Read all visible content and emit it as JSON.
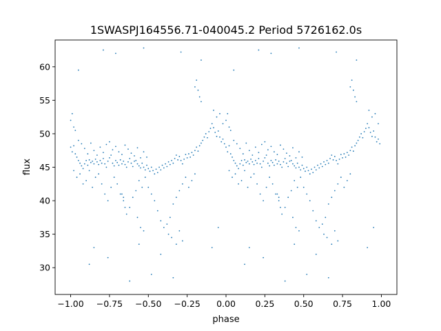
{
  "chart_data": {
    "type": "scatter",
    "title": "1SWASPJ164556.71-040045.2 Period 5726162.0s",
    "xlabel": "phase",
    "ylabel": "flux",
    "xlim": [
      -1.1,
      1.1
    ],
    "ylim": [
      26,
      64
    ],
    "xticks": [
      -1.0,
      -0.75,
      -0.5,
      -0.25,
      0.0,
      0.25,
      0.5,
      0.75,
      1.0
    ],
    "xtick_labels": [
      "−1.00",
      "−0.75",
      "−0.50",
      "−0.25",
      "0.00",
      "0.25",
      "0.50",
      "0.75",
      "1.00"
    ],
    "yticks": [
      30,
      35,
      40,
      45,
      50,
      55,
      60
    ],
    "ytick_labels": [
      "30",
      "35",
      "40",
      "45",
      "50",
      "55",
      "60"
    ],
    "grid": false,
    "marker_color": "#1f77b4",
    "folded": true,
    "series": [
      {
        "points": [
          [
            0.0,
            48.0
          ],
          [
            0.01,
            47.3
          ],
          [
            0.02,
            48.2
          ],
          [
            0.03,
            47.0
          ],
          [
            0.04,
            46.5
          ],
          [
            0.05,
            46.0
          ],
          [
            0.06,
            45.6
          ],
          [
            0.07,
            45.2
          ],
          [
            0.08,
            44.8
          ],
          [
            0.09,
            45.5
          ],
          [
            0.1,
            46.0
          ],
          [
            0.11,
            45.3
          ],
          [
            0.12,
            46.1
          ],
          [
            0.13,
            45.7
          ],
          [
            0.14,
            45.9
          ],
          [
            0.15,
            45.5
          ],
          [
            0.16,
            46.2
          ],
          [
            0.17,
            45.8
          ],
          [
            0.18,
            45.4
          ],
          [
            0.19,
            46.0
          ],
          [
            0.2,
            45.6
          ],
          [
            0.21,
            46.3
          ],
          [
            0.22,
            45.5
          ],
          [
            0.23,
            45.0
          ],
          [
            0.24,
            45.9
          ],
          [
            0.25,
            46.4
          ],
          [
            0.26,
            46.8
          ],
          [
            0.27,
            45.6
          ],
          [
            0.28,
            45.2
          ],
          [
            0.29,
            46.0
          ],
          [
            0.3,
            45.7
          ],
          [
            0.31,
            45.3
          ],
          [
            0.32,
            46.1
          ],
          [
            0.33,
            45.5
          ],
          [
            0.34,
            45.9
          ],
          [
            0.35,
            45.4
          ],
          [
            0.36,
            45.0
          ],
          [
            0.37,
            45.8
          ],
          [
            0.38,
            46.3
          ],
          [
            0.39,
            45.6
          ],
          [
            0.4,
            45.1
          ],
          [
            0.41,
            45.9
          ],
          [
            0.42,
            46.0
          ],
          [
            0.43,
            45.5
          ],
          [
            0.44,
            45.2
          ],
          [
            0.45,
            44.9
          ],
          [
            0.46,
            45.6
          ],
          [
            0.47,
            45.0
          ],
          [
            0.48,
            44.6
          ],
          [
            0.49,
            45.3
          ],
          [
            0.5,
            44.8
          ],
          [
            0.51,
            44.4
          ],
          [
            0.52,
            45.0
          ],
          [
            0.53,
            44.5
          ],
          [
            0.54,
            44.0
          ],
          [
            0.55,
            44.7
          ],
          [
            0.56,
            44.2
          ],
          [
            0.57,
            45.0
          ],
          [
            0.58,
            44.6
          ],
          [
            0.59,
            45.3
          ],
          [
            0.6,
            44.9
          ],
          [
            0.61,
            45.5
          ],
          [
            0.62,
            45.1
          ],
          [
            0.63,
            45.8
          ],
          [
            0.64,
            45.4
          ],
          [
            0.65,
            46.0
          ],
          [
            0.66,
            45.6
          ],
          [
            0.67,
            46.3
          ],
          [
            0.68,
            46.8
          ],
          [
            0.69,
            46.1
          ],
          [
            0.7,
            46.6
          ],
          [
            0.71,
            46.0
          ],
          [
            0.72,
            45.5
          ],
          [
            0.73,
            46.2
          ],
          [
            0.74,
            46.9
          ],
          [
            0.75,
            46.4
          ],
          [
            0.76,
            47.0
          ],
          [
            0.77,
            46.5
          ],
          [
            0.78,
            47.2
          ],
          [
            0.79,
            46.8
          ],
          [
            0.8,
            47.5
          ],
          [
            0.81,
            48.0
          ],
          [
            0.82,
            47.4
          ],
          [
            0.83,
            48.2
          ],
          [
            0.84,
            48.6
          ],
          [
            0.85,
            49.0
          ],
          [
            0.86,
            49.5
          ],
          [
            0.87,
            50.0
          ],
          [
            0.88,
            49.4
          ],
          [
            0.89,
            50.3
          ],
          [
            0.9,
            50.8
          ],
          [
            0.91,
            51.5
          ],
          [
            0.92,
            50.9
          ],
          [
            0.93,
            50.2
          ],
          [
            0.94,
            49.6
          ],
          [
            0.95,
            50.4
          ],
          [
            0.96,
            49.5
          ],
          [
            0.97,
            48.8
          ],
          [
            0.98,
            49.2
          ],
          [
            0.99,
            48.5
          ],
          [
            0.02,
            44.5
          ],
          [
            0.04,
            43.5
          ],
          [
            0.06,
            44.0
          ],
          [
            0.08,
            42.5
          ],
          [
            0.1,
            43.0
          ],
          [
            0.12,
            44.5
          ],
          [
            0.14,
            42.0
          ],
          [
            0.16,
            43.5
          ],
          [
            0.18,
            44.0
          ],
          [
            0.2,
            42.5
          ],
          [
            0.22,
            41.0
          ],
          [
            0.24,
            40.0
          ],
          [
            0.26,
            42.0
          ],
          [
            0.28,
            43.5
          ],
          [
            0.3,
            42.5
          ],
          [
            0.32,
            41.0
          ],
          [
            0.34,
            40.5
          ],
          [
            0.36,
            38.0
          ],
          [
            0.38,
            39.0
          ],
          [
            0.4,
            40.5
          ],
          [
            0.42,
            41.5
          ],
          [
            0.44,
            43.0
          ],
          [
            0.46,
            42.0
          ],
          [
            0.48,
            43.5
          ],
          [
            0.5,
            42.0
          ],
          [
            0.52,
            41.0
          ],
          [
            0.54,
            40.0
          ],
          [
            0.56,
            38.5
          ],
          [
            0.58,
            37.0
          ],
          [
            0.6,
            36.0
          ],
          [
            0.62,
            36.5
          ],
          [
            0.64,
            37.5
          ],
          [
            0.66,
            39.5
          ],
          [
            0.68,
            40.5
          ],
          [
            0.7,
            41.5
          ],
          [
            0.72,
            42.5
          ],
          [
            0.74,
            43.5
          ],
          [
            0.76,
            42.0
          ],
          [
            0.78,
            43.0
          ],
          [
            0.8,
            44.0
          ],
          [
            0.03,
            50.5
          ],
          [
            0.05,
            49.0
          ],
          [
            0.07,
            48.5
          ],
          [
            0.09,
            47.8
          ],
          [
            0.11,
            47.0
          ],
          [
            0.13,
            48.6
          ],
          [
            0.15,
            47.5
          ],
          [
            0.17,
            46.8
          ],
          [
            0.19,
            48.0
          ],
          [
            0.21,
            47.2
          ],
          [
            0.23,
            48.4
          ],
          [
            0.25,
            48.8
          ],
          [
            0.27,
            47.6
          ],
          [
            0.29,
            48.1
          ],
          [
            0.31,
            47.3
          ],
          [
            0.33,
            46.9
          ],
          [
            0.35,
            48.3
          ],
          [
            0.37,
            47.7
          ],
          [
            0.39,
            47.1
          ],
          [
            0.41,
            46.7
          ],
          [
            0.43,
            47.9
          ],
          [
            0.45,
            46.4
          ],
          [
            0.47,
            47.3
          ],
          [
            0.49,
            46.5
          ],
          [
            0.8,
            57.0
          ],
          [
            0.81,
            58.0
          ],
          [
            0.82,
            56.5
          ],
          [
            0.83,
            55.5
          ],
          [
            0.84,
            54.8
          ],
          [
            0.92,
            53.5
          ],
          [
            0.94,
            52.5
          ],
          [
            0.96,
            53.0
          ],
          [
            0.98,
            51.5
          ],
          [
            0.0,
            52.0
          ],
          [
            0.01,
            53.0
          ],
          [
            0.02,
            51.0
          ],
          [
            0.33,
            41.0
          ],
          [
            0.34,
            40.0
          ],
          [
            0.35,
            39.0
          ],
          [
            0.43,
            37.5
          ],
          [
            0.45,
            36.0
          ],
          [
            0.47,
            35.5
          ],
          [
            0.63,
            35.0
          ],
          [
            0.65,
            34.5
          ],
          [
            0.68,
            33.5
          ],
          [
            0.7,
            35.5
          ],
          [
            0.72,
            34.0
          ],
          [
            0.05,
            59.5
          ],
          [
            0.21,
            62.5
          ],
          [
            0.29,
            62.0
          ],
          [
            0.47,
            62.8
          ],
          [
            0.71,
            62.2
          ],
          [
            0.84,
            61.0
          ],
          [
            0.12,
            30.5
          ],
          [
            0.24,
            31.5
          ],
          [
            0.52,
            29.0
          ],
          [
            0.66,
            28.5
          ],
          [
            0.38,
            28.0
          ],
          [
            0.91,
            33.0
          ],
          [
            0.58,
            32.0
          ],
          [
            0.15,
            33.0
          ],
          [
            0.95,
            36.0
          ],
          [
            0.44,
            33.5
          ]
        ]
      }
    ]
  }
}
